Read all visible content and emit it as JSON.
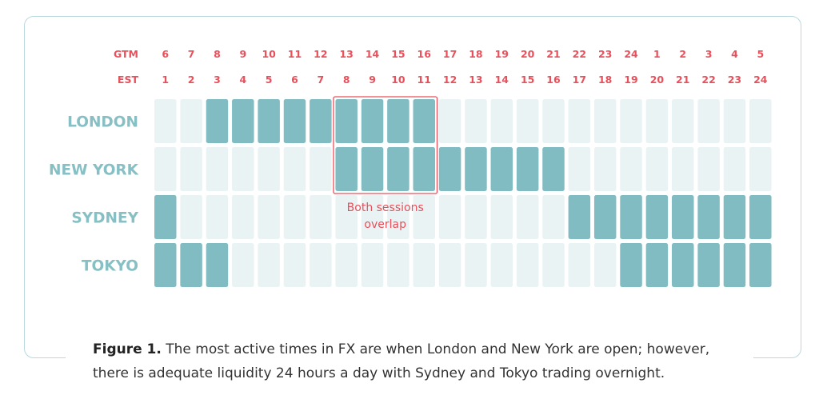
{
  "chart_data": {
    "type": "heatmap",
    "time_rows": [
      {
        "label": "GTM",
        "hours": [
          6,
          7,
          8,
          9,
          10,
          11,
          12,
          13,
          14,
          15,
          16,
          17,
          18,
          19,
          20,
          21,
          22,
          23,
          24,
          1,
          2,
          3,
          4,
          5
        ]
      },
      {
        "label": "EST",
        "hours": [
          1,
          2,
          3,
          4,
          5,
          6,
          7,
          8,
          9,
          10,
          11,
          12,
          13,
          14,
          15,
          16,
          17,
          18,
          19,
          20,
          21,
          22,
          23,
          24
        ]
      }
    ],
    "sessions": [
      {
        "name": "LONDON",
        "active_columns": [
          2,
          3,
          4,
          5,
          6,
          7,
          8,
          9,
          10
        ]
      },
      {
        "name": "NEW YORK",
        "active_columns": [
          7,
          8,
          9,
          10,
          11,
          12,
          13,
          14,
          15
        ]
      },
      {
        "name": "SYDNEY",
        "active_columns": [
          0,
          16,
          17,
          18,
          19,
          20,
          21,
          22,
          23
        ]
      },
      {
        "name": "TOKYO",
        "active_columns": [
          0,
          1,
          2,
          18,
          19,
          20,
          21,
          22,
          23
        ]
      }
    ],
    "overlap": {
      "columns": [
        7,
        10
      ],
      "rows": [
        "LONDON",
        "NEW YORK"
      ],
      "label_lines": [
        "Both sessions",
        "overlap"
      ]
    },
    "colors": {
      "active": "#81bcc3",
      "inactive": "#eaf3f4",
      "labels": "#86c0c5",
      "hours": "#e8505b",
      "overlap_box": "#e8505b"
    }
  },
  "caption": {
    "lead": "Figure 1.",
    "text": " The most active times in FX are when London and New York are open; however, there is adequate liquidity 24 hours a day with Sydney and Tokyo trading overnight."
  }
}
